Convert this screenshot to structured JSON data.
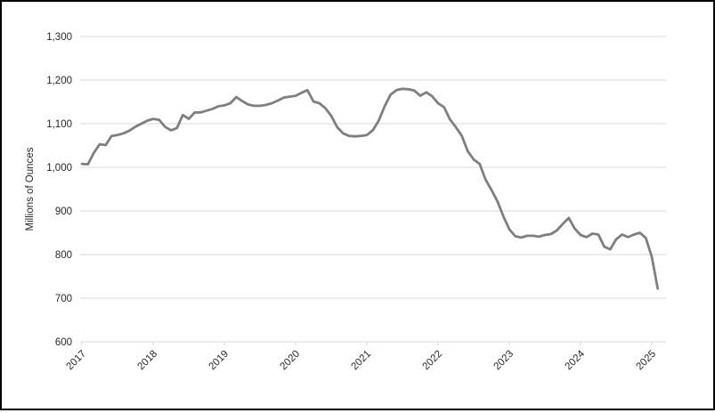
{
  "window": {
    "background": "#FFFFFF",
    "border_color": "#000000"
  },
  "chart_data": {
    "type": "line",
    "title": "",
    "xlabel": "",
    "ylabel": "Millions of Ounces",
    "ylim": [
      600,
      1300
    ],
    "ytick_step": 100,
    "ytick_values": [
      600,
      700,
      800,
      900,
      1000,
      1100,
      1200,
      1300
    ],
    "ytick_labels": [
      "600",
      "700",
      "800",
      "900",
      "1,000",
      "1,100",
      "1,200",
      "1,300"
    ],
    "xtick_labels": [
      "2017",
      "2018",
      "2019",
      "2020",
      "2021",
      "2022",
      "2023",
      "2024",
      "2025"
    ],
    "grid": true,
    "legend": "none",
    "line_color": "#7F7F7F",
    "gridline_color": "#D9D9D9",
    "text_color": "#262626",
    "x": [
      "2017-01",
      "2017-02",
      "2017-03",
      "2017-04",
      "2017-05",
      "2017-06",
      "2017-07",
      "2017-08",
      "2017-09",
      "2017-10",
      "2017-11",
      "2017-12",
      "2018-01",
      "2018-02",
      "2018-03",
      "2018-04",
      "2018-05",
      "2018-06",
      "2018-07",
      "2018-08",
      "2018-09",
      "2018-10",
      "2018-11",
      "2018-12",
      "2019-01",
      "2019-02",
      "2019-03",
      "2019-04",
      "2019-05",
      "2019-06",
      "2019-07",
      "2019-08",
      "2019-09",
      "2019-10",
      "2019-11",
      "2019-12",
      "2020-01",
      "2020-02",
      "2020-03",
      "2020-04",
      "2020-05",
      "2020-06",
      "2020-07",
      "2020-08",
      "2020-09",
      "2020-10",
      "2020-11",
      "2020-12",
      "2021-01",
      "2021-02",
      "2021-03",
      "2021-04",
      "2021-05",
      "2021-06",
      "2021-07",
      "2021-08",
      "2021-09",
      "2021-10",
      "2021-11",
      "2021-12",
      "2022-01",
      "2022-02",
      "2022-03",
      "2022-04",
      "2022-05",
      "2022-06",
      "2022-07",
      "2022-08",
      "2022-09",
      "2022-10",
      "2022-11",
      "2022-12",
      "2023-01",
      "2023-02",
      "2023-03",
      "2023-04",
      "2023-05",
      "2023-06",
      "2023-07",
      "2023-08",
      "2023-09",
      "2023-10",
      "2023-11",
      "2023-12",
      "2024-01",
      "2024-02",
      "2024-03",
      "2024-04",
      "2024-05",
      "2024-06",
      "2024-07",
      "2024-08",
      "2024-09",
      "2024-10",
      "2024-11",
      "2024-12",
      "2025-01",
      "2025-02"
    ],
    "series": [
      {
        "name": "Millions of Ounces",
        "values": [
          1008,
          1007,
          1033,
          1053,
          1051,
          1072,
          1074,
          1078,
          1084,
          1093,
          1100,
          1107,
          1111,
          1109,
          1093,
          1085,
          1090,
          1120,
          1111,
          1126,
          1126,
          1130,
          1134,
          1140,
          1142,
          1147,
          1161,
          1152,
          1144,
          1141,
          1141,
          1143,
          1147,
          1153,
          1160,
          1162,
          1164,
          1171,
          1177,
          1151,
          1147,
          1136,
          1118,
          1092,
          1078,
          1072,
          1071,
          1072,
          1074,
          1085,
          1107,
          1140,
          1167,
          1177,
          1180,
          1179,
          1176,
          1164,
          1172,
          1163,
          1147,
          1138,
          1110,
          1092,
          1072,
          1037,
          1018,
          1008,
          972,
          948,
          922,
          888,
          858,
          842,
          839,
          843,
          843,
          841,
          845,
          847,
          855,
          870,
          884,
          860,
          845,
          840,
          848,
          846,
          818,
          812,
          835,
          846,
          840,
          846,
          850,
          838,
          795,
          722
        ]
      }
    ]
  }
}
